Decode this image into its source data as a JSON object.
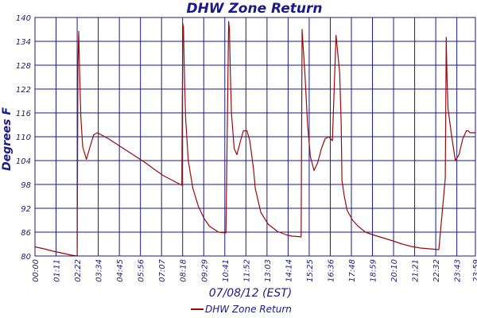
{
  "chart_data": {
    "type": "line",
    "title": "DHW Zone Return",
    "xlabel": "07/08/12 (EST)",
    "ylabel": "Degrees F",
    "ylim": [
      80,
      140
    ],
    "yticks": [
      80,
      86,
      92,
      98,
      104,
      110,
      116,
      122,
      128,
      134,
      140
    ],
    "xticks": [
      "00:00",
      "01:11",
      "02:22",
      "03:34",
      "04:45",
      "05:56",
      "07:07",
      "08:18",
      "09:29",
      "10:41",
      "11:52",
      "13:03",
      "14:14",
      "15:25",
      "16:36",
      "17:48",
      "18:59",
      "20:10",
      "21:21",
      "22:32",
      "23:43",
      "23:59"
    ],
    "grid": true,
    "legend_position": "bottom",
    "colors": {
      "line": "#9b0a0a",
      "grid": "#1a1a8c",
      "text": "#1a1a8c"
    },
    "series": [
      {
        "name": "DHW Zone Return",
        "x": [
          0.0,
          0.5,
          1.0,
          1.5,
          2.0,
          2.3,
          2.34,
          2.38,
          2.42,
          2.5,
          2.6,
          2.8,
          3.0,
          3.2,
          3.4,
          3.6,
          4.0,
          4.5,
          5.0,
          5.5,
          6.0,
          6.5,
          7.0,
          7.5,
          8.0,
          8.05,
          8.09,
          8.13,
          8.2,
          8.35,
          8.6,
          8.9,
          9.2,
          9.5,
          10.0,
          10.4,
          10.55,
          10.59,
          10.63,
          10.7,
          10.85,
          11.0,
          11.2,
          11.35,
          11.55,
          11.7,
          11.9,
          12.0,
          12.3,
          12.7,
          13.2,
          13.7,
          14.0,
          14.3,
          14.5,
          14.55,
          14.6,
          14.7,
          14.85,
          15.0,
          15.2,
          15.4,
          15.6,
          15.8,
          16.0,
          16.2,
          16.4,
          16.6,
          16.68,
          16.72,
          16.85,
          17.0,
          17.3,
          17.6,
          18.0,
          18.5,
          19.0,
          19.5,
          20.0,
          20.5,
          21.0,
          21.5,
          22.0,
          22.35,
          22.4,
          22.45,
          22.5,
          22.7,
          22.9,
          23.1,
          23.3,
          23.5,
          23.6,
          23.7,
          23.83,
          23.99
        ],
        "values": [
          82.3,
          81.8,
          81.2,
          80.7,
          80.2,
          80.0,
          128.0,
          136.5,
          128.0,
          115.0,
          107.5,
          104.3,
          107.5,
          110.5,
          111.0,
          110.5,
          109.5,
          108.0,
          106.5,
          105.0,
          103.5,
          101.8,
          100.2,
          99.0,
          97.8,
          138.5,
          137.5,
          128.0,
          115.0,
          104.0,
          97.0,
          92.5,
          89.5,
          87.5,
          86.0,
          85.8,
          139.0,
          137.0,
          128.0,
          116.0,
          107.0,
          105.5,
          109.0,
          111.5,
          111.5,
          109.0,
          102.0,
          97.0,
          91.0,
          88.0,
          86.2,
          85.3,
          85.0,
          84.9,
          84.8,
          137.0,
          133.0,
          126.0,
          113.0,
          105.0,
          101.5,
          103.5,
          107.0,
          109.5,
          110.0,
          109.0,
          135.5,
          126.0,
          113.0,
          99.0,
          95.0,
          91.5,
          89.0,
          87.5,
          86.0,
          85.2,
          84.5,
          83.8,
          83.0,
          82.4,
          82.0,
          81.8,
          81.6,
          99.5,
          135.0,
          124.0,
          117.0,
          110.0,
          104.0,
          105.5,
          109.5,
          111.5,
          111.5,
          111.0,
          111.0,
          111.0
        ]
      }
    ]
  }
}
